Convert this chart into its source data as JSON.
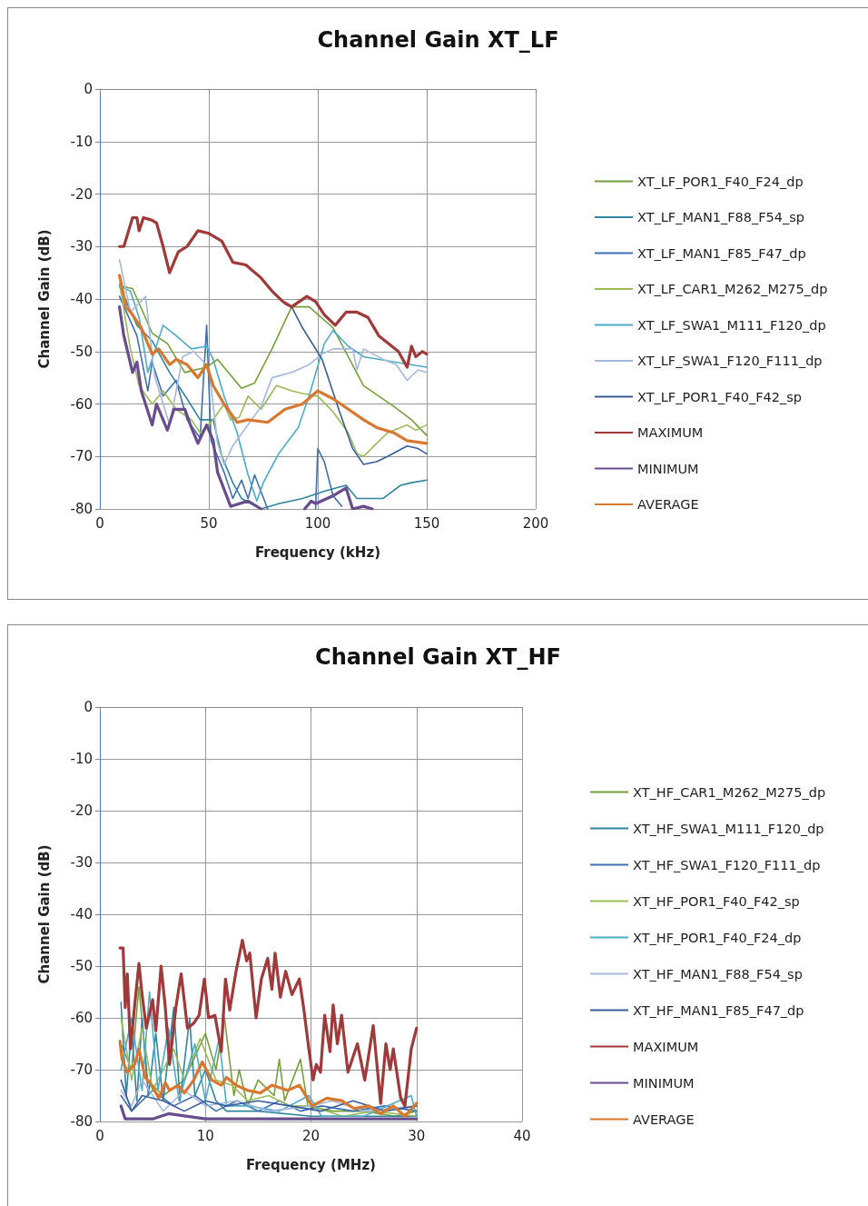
{
  "chart_data": [
    {
      "type": "line",
      "title": "Channel Gain XT_LF",
      "xlabel": "Frequency (kHz)",
      "ylabel": "Channel Gain (dB)",
      "xlim": [
        0,
        200
      ],
      "xticks": [
        0,
        50,
        100,
        150,
        200
      ],
      "ylim": [
        -80,
        0
      ],
      "yticks": [
        -80,
        -70,
        -60,
        -50,
        -40,
        -30,
        -20,
        -10,
        0
      ],
      "grid": true,
      "legend": "right",
      "marker": "none",
      "line_style": "solid",
      "series": [
        {
          "name": "XT_LF_POR1_F40_F24_dp",
          "color": "#77a03c",
          "x": [
            9,
            15,
            24,
            31,
            39,
            49,
            54,
            61,
            65,
            71,
            79,
            88,
            96,
            107,
            121,
            135,
            143,
            150
          ],
          "values": [
            -37.5,
            -38,
            -46.5,
            -48.5,
            -54,
            -53,
            -51.5,
            -55,
            -57,
            -56,
            -49.5,
            -41.5,
            -41.5,
            -45.5,
            -56.5,
            -60.5,
            -63,
            -66
          ]
        },
        {
          "name": "XT_LF_MAN1_F88_F54_sp",
          "color": "#31859c",
          "x": [
            9,
            17,
            24,
            32,
            40,
            46,
            52,
            56,
            61,
            65,
            74,
            82,
            93,
            104,
            113,
            118,
            130,
            138,
            143,
            150
          ],
          "values": [
            -37.5,
            -45,
            -48,
            -54,
            -59,
            -63,
            -63,
            -70,
            -75,
            -78,
            -80,
            -79,
            -78,
            -76.5,
            -75.5,
            -78,
            -78,
            -75.5,
            -75,
            -74.5
          ]
        },
        {
          "name": "XT_LF_MAN1_F85_F47_dp",
          "color": "#3f6fb0",
          "x": [
            9,
            17,
            22,
            24,
            29,
            35,
            40,
            46,
            49,
            51,
            57,
            61,
            65,
            68,
            71,
            77,
            85,
            99,
            100,
            103,
            107,
            111
          ],
          "values": [
            -39.5,
            -47,
            -57.5,
            -52,
            -58.5,
            -55.5,
            -63,
            -66.5,
            -45,
            -67,
            -73,
            -78,
            -74.5,
            -78,
            -73.5,
            -80,
            null,
            -80,
            -68.5,
            -71,
            -77.5,
            -79.5
          ]
        },
        {
          "name": "XT_LF_CAR1_M262_M275_dp",
          "color": "#9bbb59",
          "x": [
            9,
            14,
            18,
            24,
            29,
            35,
            42,
            46,
            52,
            57,
            60,
            64,
            68,
            74,
            81,
            88,
            93,
            100,
            107,
            114,
            118,
            121,
            127,
            132,
            141,
            145,
            150
          ],
          "values": [
            -37,
            -49.5,
            -56.5,
            -60,
            -57.5,
            -61,
            -63,
            -65.5,
            -63,
            -60,
            -63,
            -62.5,
            -58.5,
            -61,
            -56.5,
            -57.5,
            -58,
            -58.5,
            -61.5,
            -65.5,
            -69.5,
            -70,
            -67.5,
            -65.5,
            -64,
            -65,
            -64
          ]
        },
        {
          "name": "XT_LF_SWA1_M111_F120_dp",
          "color": "#4bacc6",
          "x": [
            9,
            14,
            18,
            22,
            29,
            35,
            42,
            49,
            52,
            57,
            63,
            68,
            72,
            75,
            82,
            91,
            96,
            103,
            107,
            114,
            121,
            135,
            150
          ],
          "values": [
            -37.5,
            -38.5,
            -43.5,
            -54,
            -45,
            -47,
            -49.5,
            -49,
            -51.5,
            -58.5,
            -65.5,
            -73.5,
            -78.5,
            -75,
            -69.5,
            -64.5,
            -58.5,
            -48.5,
            -46,
            -49,
            -51,
            -52,
            -53
          ]
        },
        {
          "name": "XT_LF_SWA1_F120_F111_dp",
          "color": "#a5b9dc",
          "x": [
            9,
            14,
            21,
            25,
            32,
            38,
            43,
            50,
            54,
            57,
            61,
            67,
            74,
            79,
            88,
            96,
            102,
            107,
            116,
            118,
            121,
            130,
            136,
            141,
            146,
            150
          ],
          "values": [
            -32.5,
            -42.5,
            -39.5,
            -54.5,
            -64,
            -51,
            -50,
            -53,
            -67.5,
            -71.5,
            -68,
            -64.5,
            -60.5,
            -55,
            -54,
            -52.5,
            -50.5,
            -49.5,
            -49.5,
            -53.5,
            -49.5,
            -51.5,
            -52.5,
            -55.5,
            -53.5,
            -54
          ]
        },
        {
          "name": "XT_LF_POR1_F40_F42_sp",
          "color": "#3a5c9a",
          "x": [
            85,
            88,
            93,
            102,
            110,
            116,
            121,
            127,
            132,
            141,
            146,
            150
          ],
          "values": [
            -41,
            -41.5,
            -45.5,
            -51.5,
            -61.5,
            -68.5,
            -71.5,
            -71,
            -70,
            -68,
            -68.5,
            -69.5
          ]
        },
        {
          "name": "MAXIMUM",
          "color": "#a0393a",
          "x": [
            9,
            11,
            15,
            17,
            18,
            20,
            24,
            26,
            29,
            32,
            36,
            40,
            45,
            50,
            56,
            61,
            67,
            74,
            79,
            84,
            88,
            95,
            99,
            103,
            108,
            113,
            118,
            123,
            128,
            137,
            141,
            143,
            145,
            148,
            150
          ],
          "values": [
            -30,
            -30,
            -24.5,
            -24.5,
            -27,
            -24.5,
            -25,
            -25.5,
            -30,
            -35,
            -31,
            -30,
            -27,
            -27.5,
            -29,
            -33,
            -33.5,
            -36,
            -38.5,
            -40.5,
            -41.5,
            -39.5,
            -40.5,
            -43,
            -45,
            -42.5,
            -42.5,
            -43.5,
            -47,
            -50,
            -53,
            -49,
            -51,
            -50,
            -50.5
          ]
        },
        {
          "name": "MINIMUM",
          "color": "#674d8c",
          "x": [
            9,
            11,
            15,
            17,
            19,
            24,
            26,
            31,
            34,
            39,
            42,
            45,
            49,
            52,
            54,
            60,
            68,
            74,
            80,
            94,
            97,
            99,
            107,
            113,
            116,
            121,
            125
          ],
          "values": [
            -41.5,
            -47,
            -54,
            -52,
            -57.5,
            -64,
            -60,
            -65,
            -61,
            -61,
            -64.5,
            -67.5,
            -64,
            -67,
            -73,
            -79.5,
            -78.5,
            -80,
            null,
            -80,
            -78.5,
            -79,
            -77.5,
            -76,
            -80,
            -79.5,
            -80
          ]
        },
        {
          "name": "AVERAGE",
          "color": "#d8782f",
          "x": [
            9,
            12,
            15,
            19,
            24,
            27,
            32,
            35,
            40,
            45,
            49,
            52,
            57,
            63,
            68,
            77,
            85,
            93,
            100,
            107,
            114,
            121,
            127,
            135,
            141,
            150
          ],
          "values": [
            -35.5,
            -41.5,
            -43,
            -45.5,
            -50.5,
            -49.5,
            -52.5,
            -51.5,
            -52.5,
            -55,
            -52.5,
            -56.5,
            -60,
            -63.5,
            -63,
            -63.5,
            -61,
            -60,
            -57.5,
            -59,
            -61,
            -63,
            -64.5,
            -65.5,
            -67,
            -67.5
          ]
        }
      ]
    },
    {
      "type": "line",
      "title": "Channel Gain XT_HF",
      "xlabel": "Frequency (MHz)",
      "ylabel": "Channel Gain (dB)",
      "xlim": [
        0,
        40
      ],
      "xticks": [
        0,
        10,
        20,
        30,
        40
      ],
      "ylim": [
        -80,
        0
      ],
      "yticks": [
        -80,
        -70,
        -60,
        -50,
        -40,
        -30,
        -20,
        -10,
        0
      ],
      "grid": true,
      "legend": "right",
      "marker": "none",
      "line_style": "solid",
      "series": [
        {
          "name": "XT_HF_CAR1_M262_M275_dp",
          "color": "#77a03c",
          "x": [
            2,
            3,
            3.7,
            4.5,
            6,
            8,
            10,
            11,
            11.8,
            12.7,
            13.2,
            14,
            15,
            16.5,
            17,
            17.5,
            19,
            19.7,
            22,
            25,
            28,
            30
          ],
          "values": [
            -65,
            -70,
            -54,
            -72,
            -75,
            -72,
            -63,
            -70,
            -60,
            -75,
            -70,
            -77,
            -72,
            -75,
            -68,
            -76,
            -68,
            -77,
            -78,
            -78,
            -79,
            -78
          ]
        },
        {
          "name": "XT_HF_SWA1_M111_F120_dp",
          "color": "#31859c",
          "x": [
            2,
            2.5,
            3,
            3.5,
            4,
            4.6,
            5.3,
            6,
            7,
            7.6,
            8.5,
            9,
            10,
            11,
            12,
            15,
            20,
            25,
            30
          ],
          "values": [
            -57,
            -75,
            -62,
            -76,
            -60,
            -75,
            -63,
            -76,
            -58,
            -76,
            -60,
            -75,
            -70,
            -76,
            -78,
            -78,
            -79,
            -79,
            -79
          ]
        },
        {
          "name": "XT_HF_SWA1_F120_F111_dp",
          "color": "#3f6fb0",
          "x": [
            2,
            3,
            5,
            7,
            9,
            11,
            13,
            15,
            17,
            19,
            21,
            24,
            27,
            30
          ],
          "values": [
            -75,
            -78,
            -74,
            -77,
            -75,
            -78,
            -76,
            -78,
            -76,
            -78,
            -77,
            -78,
            -77,
            -78
          ]
        },
        {
          "name": "XT_HF_POR1_F40_F42_sp",
          "color": "#9bbb59",
          "x": [
            2,
            3,
            4,
            5,
            7,
            8,
            9.5,
            11,
            12.5,
            14,
            16,
            18,
            20,
            23,
            26,
            30
          ],
          "values": [
            -60,
            -72,
            -62,
            -74,
            -66,
            -72,
            -64,
            -72,
            -73,
            -76,
            -75,
            -77,
            -77,
            -79,
            -78,
            -79
          ]
        },
        {
          "name": "XT_HF_POR1_F40_F24_dp",
          "color": "#4bacc6",
          "x": [
            2,
            3,
            4,
            4.7,
            5.5,
            6.5,
            7.5,
            9,
            10,
            11.3,
            12,
            14,
            17,
            19.8,
            21,
            25,
            29.5,
            30
          ],
          "values": [
            -70,
            -60,
            -74,
            -55,
            -74,
            -62,
            -76,
            -65,
            -76,
            -64,
            -77,
            -77,
            -78,
            -75,
            -79,
            -79,
            -75,
            -79
          ]
        },
        {
          "name": "XT_HF_MAN1_F88_F54_sp",
          "color": "#a5b9dc",
          "x": [
            2,
            3,
            4,
            6,
            8,
            10,
            13,
            16,
            20,
            22,
            25,
            30
          ],
          "values": [
            -74,
            -77,
            -72,
            -78,
            -74,
            -77,
            -76,
            -78,
            -77,
            -76,
            -78,
            -77
          ]
        },
        {
          "name": "XT_HF_MAN1_F85_F47_dp",
          "color": "#3a5c9a",
          "x": [
            2,
            3,
            4,
            6,
            8,
            10,
            12,
            15,
            18,
            21,
            24,
            27,
            30
          ],
          "values": [
            -72,
            -78,
            -75,
            -76,
            -78,
            -76,
            -77,
            -76,
            -77,
            -78,
            -76,
            -78,
            -77
          ]
        },
        {
          "name": "MAXIMUM",
          "color": "#a0393a",
          "x": [
            1.9,
            2.2,
            2.4,
            2.6,
            2.9,
            3.3,
            3.7,
            4.0,
            4.4,
            5.0,
            5.3,
            5.8,
            6.2,
            6.6,
            7.2,
            7.7,
            8.3,
            8.9,
            9.4,
            9.9,
            10.3,
            10.9,
            11.5,
            11.9,
            12.3,
            12.9,
            13.5,
            13.9,
            14.2,
            14.8,
            15.3,
            15.9,
            16.3,
            16.6,
            17.1,
            17.6,
            18.2,
            18.9,
            19.3,
            19.8,
            20.2,
            20.5,
            20.9,
            21.3,
            21.8,
            22.1,
            22.5,
            22.9,
            23.5,
            24.4,
            25.1,
            25.9,
            26.6,
            27.1,
            27.5,
            27.8,
            28.5,
            28.9,
            29.5,
            30
          ],
          "values": [
            -46.5,
            -46.5,
            -58,
            -51.5,
            -66,
            -57.5,
            -49.5,
            -55.5,
            -62,
            -56.5,
            -62.5,
            -50,
            -58,
            -69,
            -58,
            -51.5,
            -62,
            -61,
            -59.5,
            -52.5,
            -60,
            -59.5,
            -66.5,
            -52.5,
            -58.5,
            -51,
            -45,
            -49,
            -47.5,
            -60,
            -52.5,
            -48.5,
            -54.5,
            -47.5,
            -56,
            -51,
            -55.5,
            -52.5,
            -58,
            -66,
            -72,
            -69,
            -70.5,
            -59.5,
            -66.5,
            -57.5,
            -65,
            -59.5,
            -70.5,
            -65,
            -72,
            -61.5,
            -76.5,
            -65,
            -70,
            -66,
            -75.5,
            -77,
            -66,
            -62
          ]
        },
        {
          "name": "MINIMUM",
          "color": "#674d8c",
          "x": [
            2,
            2.4,
            5,
            6.5,
            10,
            15,
            20,
            25,
            30
          ],
          "values": [
            -77,
            -79.5,
            -79.5,
            -78.5,
            -79.5,
            -79.5,
            -79.5,
            -79.5,
            -79.5
          ]
        },
        {
          "name": "AVERAGE",
          "color": "#d8782f",
          "x": [
            1.9,
            2.1,
            2.6,
            3.3,
            3.7,
            4.3,
            4.9,
            5.6,
            6.2,
            6.6,
            7.4,
            8.0,
            8.9,
            9.7,
            10.6,
            11.5,
            12.0,
            12.9,
            14.0,
            15.2,
            16.3,
            17.8,
            18.9,
            20.1,
            21.5,
            22.9,
            24.1,
            25.5,
            26.6,
            27.8,
            28.9,
            30
          ],
          "values": [
            -64.5,
            -68,
            -70.5,
            -69,
            -66,
            -71.5,
            -73,
            -75.5,
            -72.5,
            -74,
            -73,
            -74.5,
            -72,
            -68.5,
            -72,
            -73,
            -71.5,
            -73,
            -74,
            -74.5,
            -73,
            -74,
            -73,
            -77,
            -75.5,
            -76,
            -77.5,
            -77,
            -78.5,
            -77,
            -79,
            -76.5
          ]
        }
      ]
    }
  ]
}
